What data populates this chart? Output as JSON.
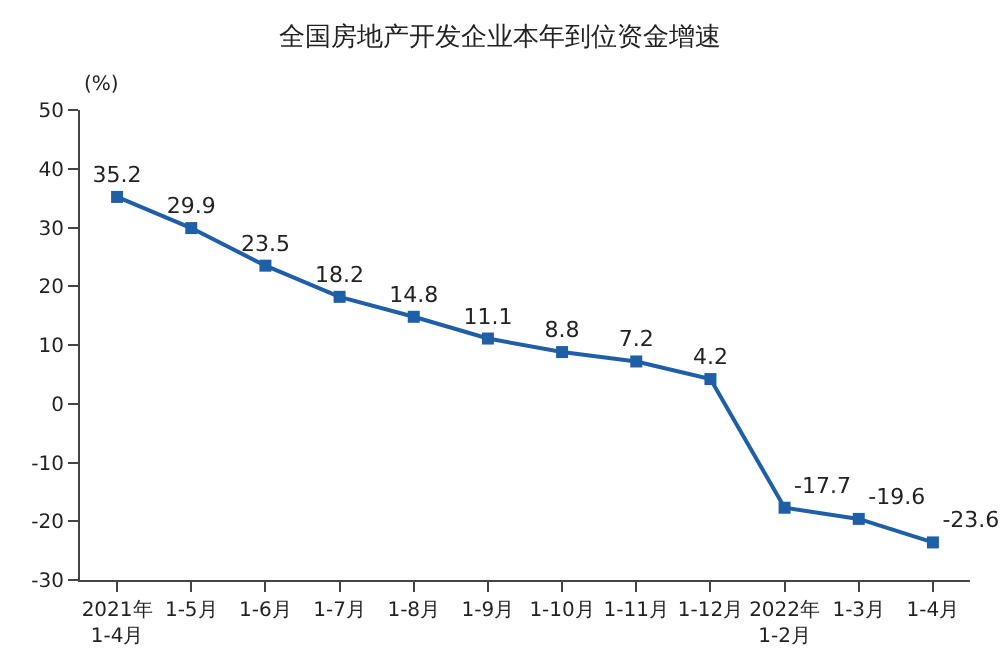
{
  "chart_data": {
    "type": "line",
    "title": "全国房地产开发企业本年到位资金增速",
    "ylabel": "(%)",
    "categories": [
      "2021年\n1-4月",
      "1-5月",
      "1-6月",
      "1-7月",
      "1-8月",
      "1-9月",
      "1-10月",
      "1-11月",
      "1-12月",
      "2022年\n1-2月",
      "1-3月",
      "1-4月"
    ],
    "series": [
      {
        "color": "#1f5fa8",
        "values": [
          35.2,
          29.9,
          23.5,
          18.2,
          14.8,
          11.1,
          8.8,
          7.2,
          4.2,
          -17.7,
          -19.6,
          -23.6
        ]
      }
    ],
    "ylim": [
      -30,
      50
    ],
    "yticks": [
      -30,
      -20,
      -10,
      0,
      10,
      20,
      30,
      40,
      50
    ],
    "data_labels": true,
    "marker": "square",
    "line_style": "solid"
  }
}
